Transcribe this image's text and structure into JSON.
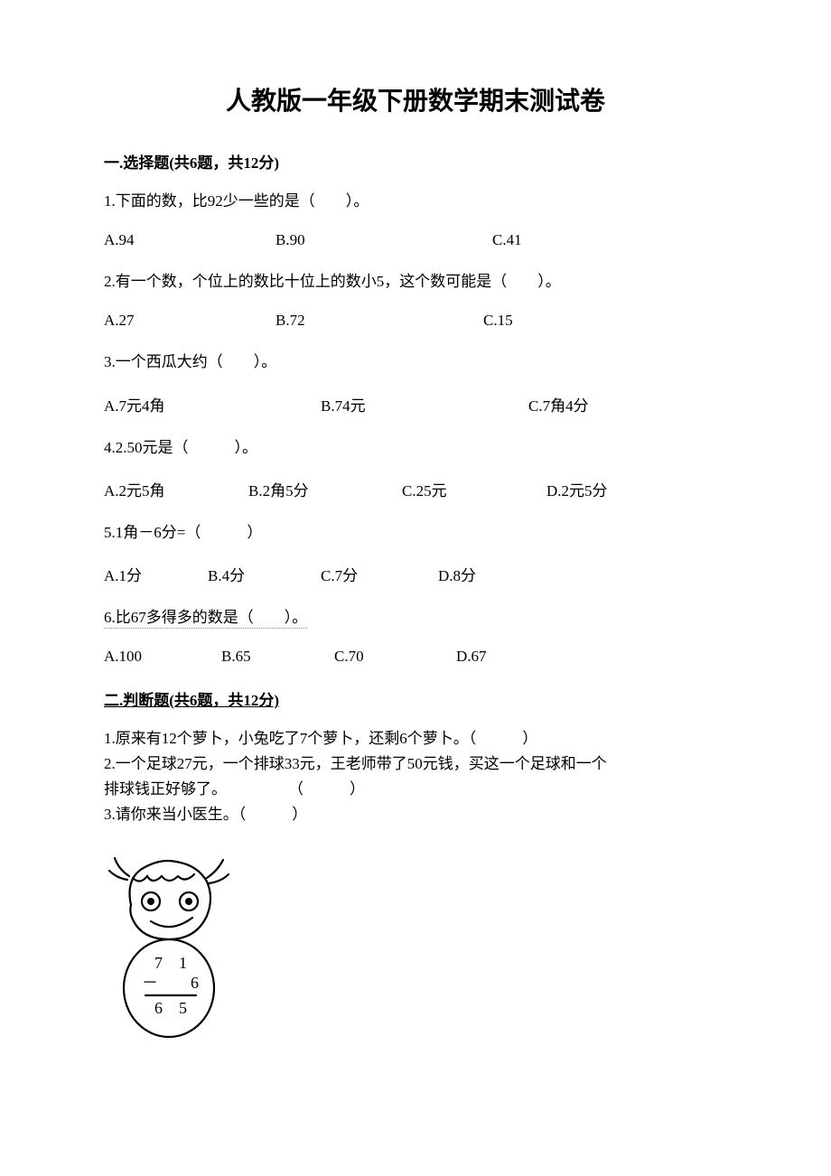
{
  "title": "人教版一年级下册数学期末测试卷",
  "section1": {
    "header": "一.选择题(共6题，共12分)",
    "q1": {
      "text": "1.下面的数，比92少一些的是（　　）。",
      "optA": "A.94",
      "optB": "B.90",
      "optC": "C.41"
    },
    "q2": {
      "text": "2.有一个数，个位上的数比十位上的数小5，这个数可能是（　　）。",
      "optA": "A.27",
      "optB": "B.72",
      "optC": "C.15"
    },
    "q3": {
      "text": "3.一个西瓜大约（　　）。",
      "optA": "A.7元4角",
      "optB": "B.74元",
      "optC": "C.7角4分"
    },
    "q4": {
      "text": "4.2.50元是（　　　）。",
      "optA": "A.2元5角",
      "optB": "B.2角5分",
      "optC": "C.25元",
      "optD": "D.2元5分"
    },
    "q5": {
      "text": "5.1角－6分=（　　　）",
      "optA": "A.1分",
      "optB": "B.4分",
      "optC": "C.7分",
      "optD": "D.8分"
    },
    "q6": {
      "text": "6.比67多得多的数是（　　）。",
      "optA": "A.100",
      "optB": "B.65",
      "optC": "C.70",
      "optD": "D.67"
    }
  },
  "section2": {
    "header": "二.判断题(共6题，共12分)",
    "j1": "1.原来有12个萝卜，小兔吃了7个萝卜，还剩6个萝卜。（　　　）",
    "j2a": "2.一个足球27元，一个排球33元，王老师带了50元钱，买这一个足球和一个",
    "j2b": "排球钱正好够了。　　　　　（　　　）",
    "j3": "3.请你来当小医生。（　　　）"
  },
  "figure": {
    "math_top": "7　1",
    "math_mid": "－　　6",
    "math_bot": "6　5",
    "stroke_color": "#000000",
    "stroke_width": 2.2,
    "fill": "#ffffff"
  },
  "layout": {
    "q1_widths": [
      190,
      240,
      100
    ],
    "q2_widths": [
      190,
      230,
      100
    ],
    "q3_widths": [
      240,
      230,
      120
    ],
    "q4_widths": [
      160,
      170,
      160,
      120
    ],
    "q5_widths": [
      115,
      125,
      130,
      100
    ],
    "q6_widths": [
      130,
      125,
      135,
      100
    ]
  }
}
